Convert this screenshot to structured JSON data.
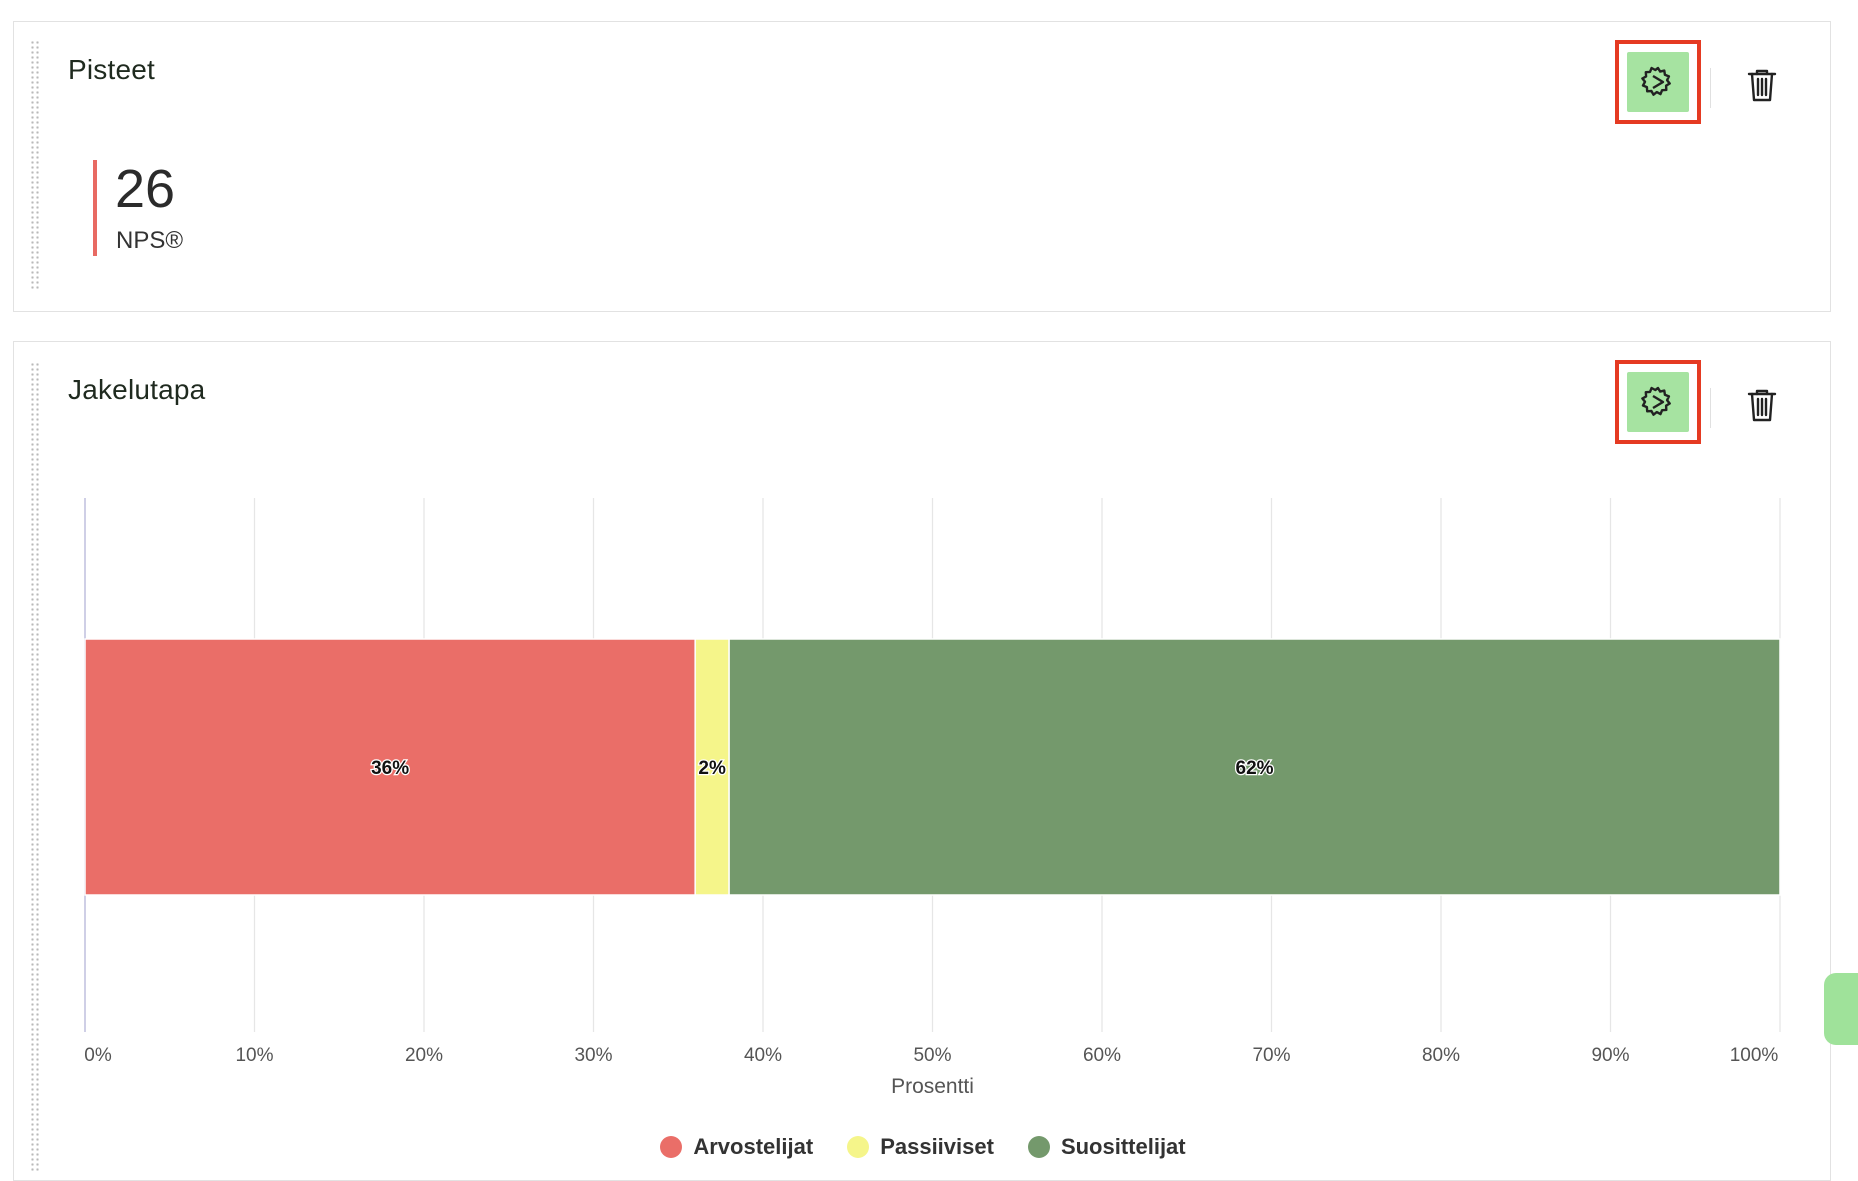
{
  "colors": {
    "accent_green": "#a6e3a1",
    "highlight_red": "#e53a22",
    "detractor": "#ea6e68",
    "passive": "#f5f58a",
    "promoter": "#74996c"
  },
  "cards": [
    {
      "title": "Pisteet",
      "score": {
        "value": "26",
        "label": "NPS®"
      },
      "actions": {
        "settings_icon": "gear-icon",
        "delete_icon": "trash-icon"
      }
    },
    {
      "title": "Jakelutapa",
      "actions": {
        "settings_icon": "gear-icon",
        "delete_icon": "trash-icon"
      }
    }
  ],
  "chart_data": {
    "type": "bar",
    "orientation": "horizontal",
    "stacked": true,
    "xlabel": "Prosentti",
    "xlim": [
      0,
      100
    ],
    "x_ticks": [
      "0%",
      "10%",
      "20%",
      "30%",
      "40%",
      "50%",
      "60%",
      "70%",
      "80%",
      "90%",
      "100%"
    ],
    "grid": true,
    "legend_position": "bottom",
    "series": [
      {
        "name": "Arvostelijat",
        "values": [
          36
        ],
        "label": "36%",
        "color": "#ea6e68"
      },
      {
        "name": "Passiiviset",
        "values": [
          2
        ],
        "label": "2%",
        "color": "#f5f58a"
      },
      {
        "name": "Suosittelijat",
        "values": [
          62
        ],
        "label": "62%",
        "color": "#74996c"
      }
    ]
  }
}
